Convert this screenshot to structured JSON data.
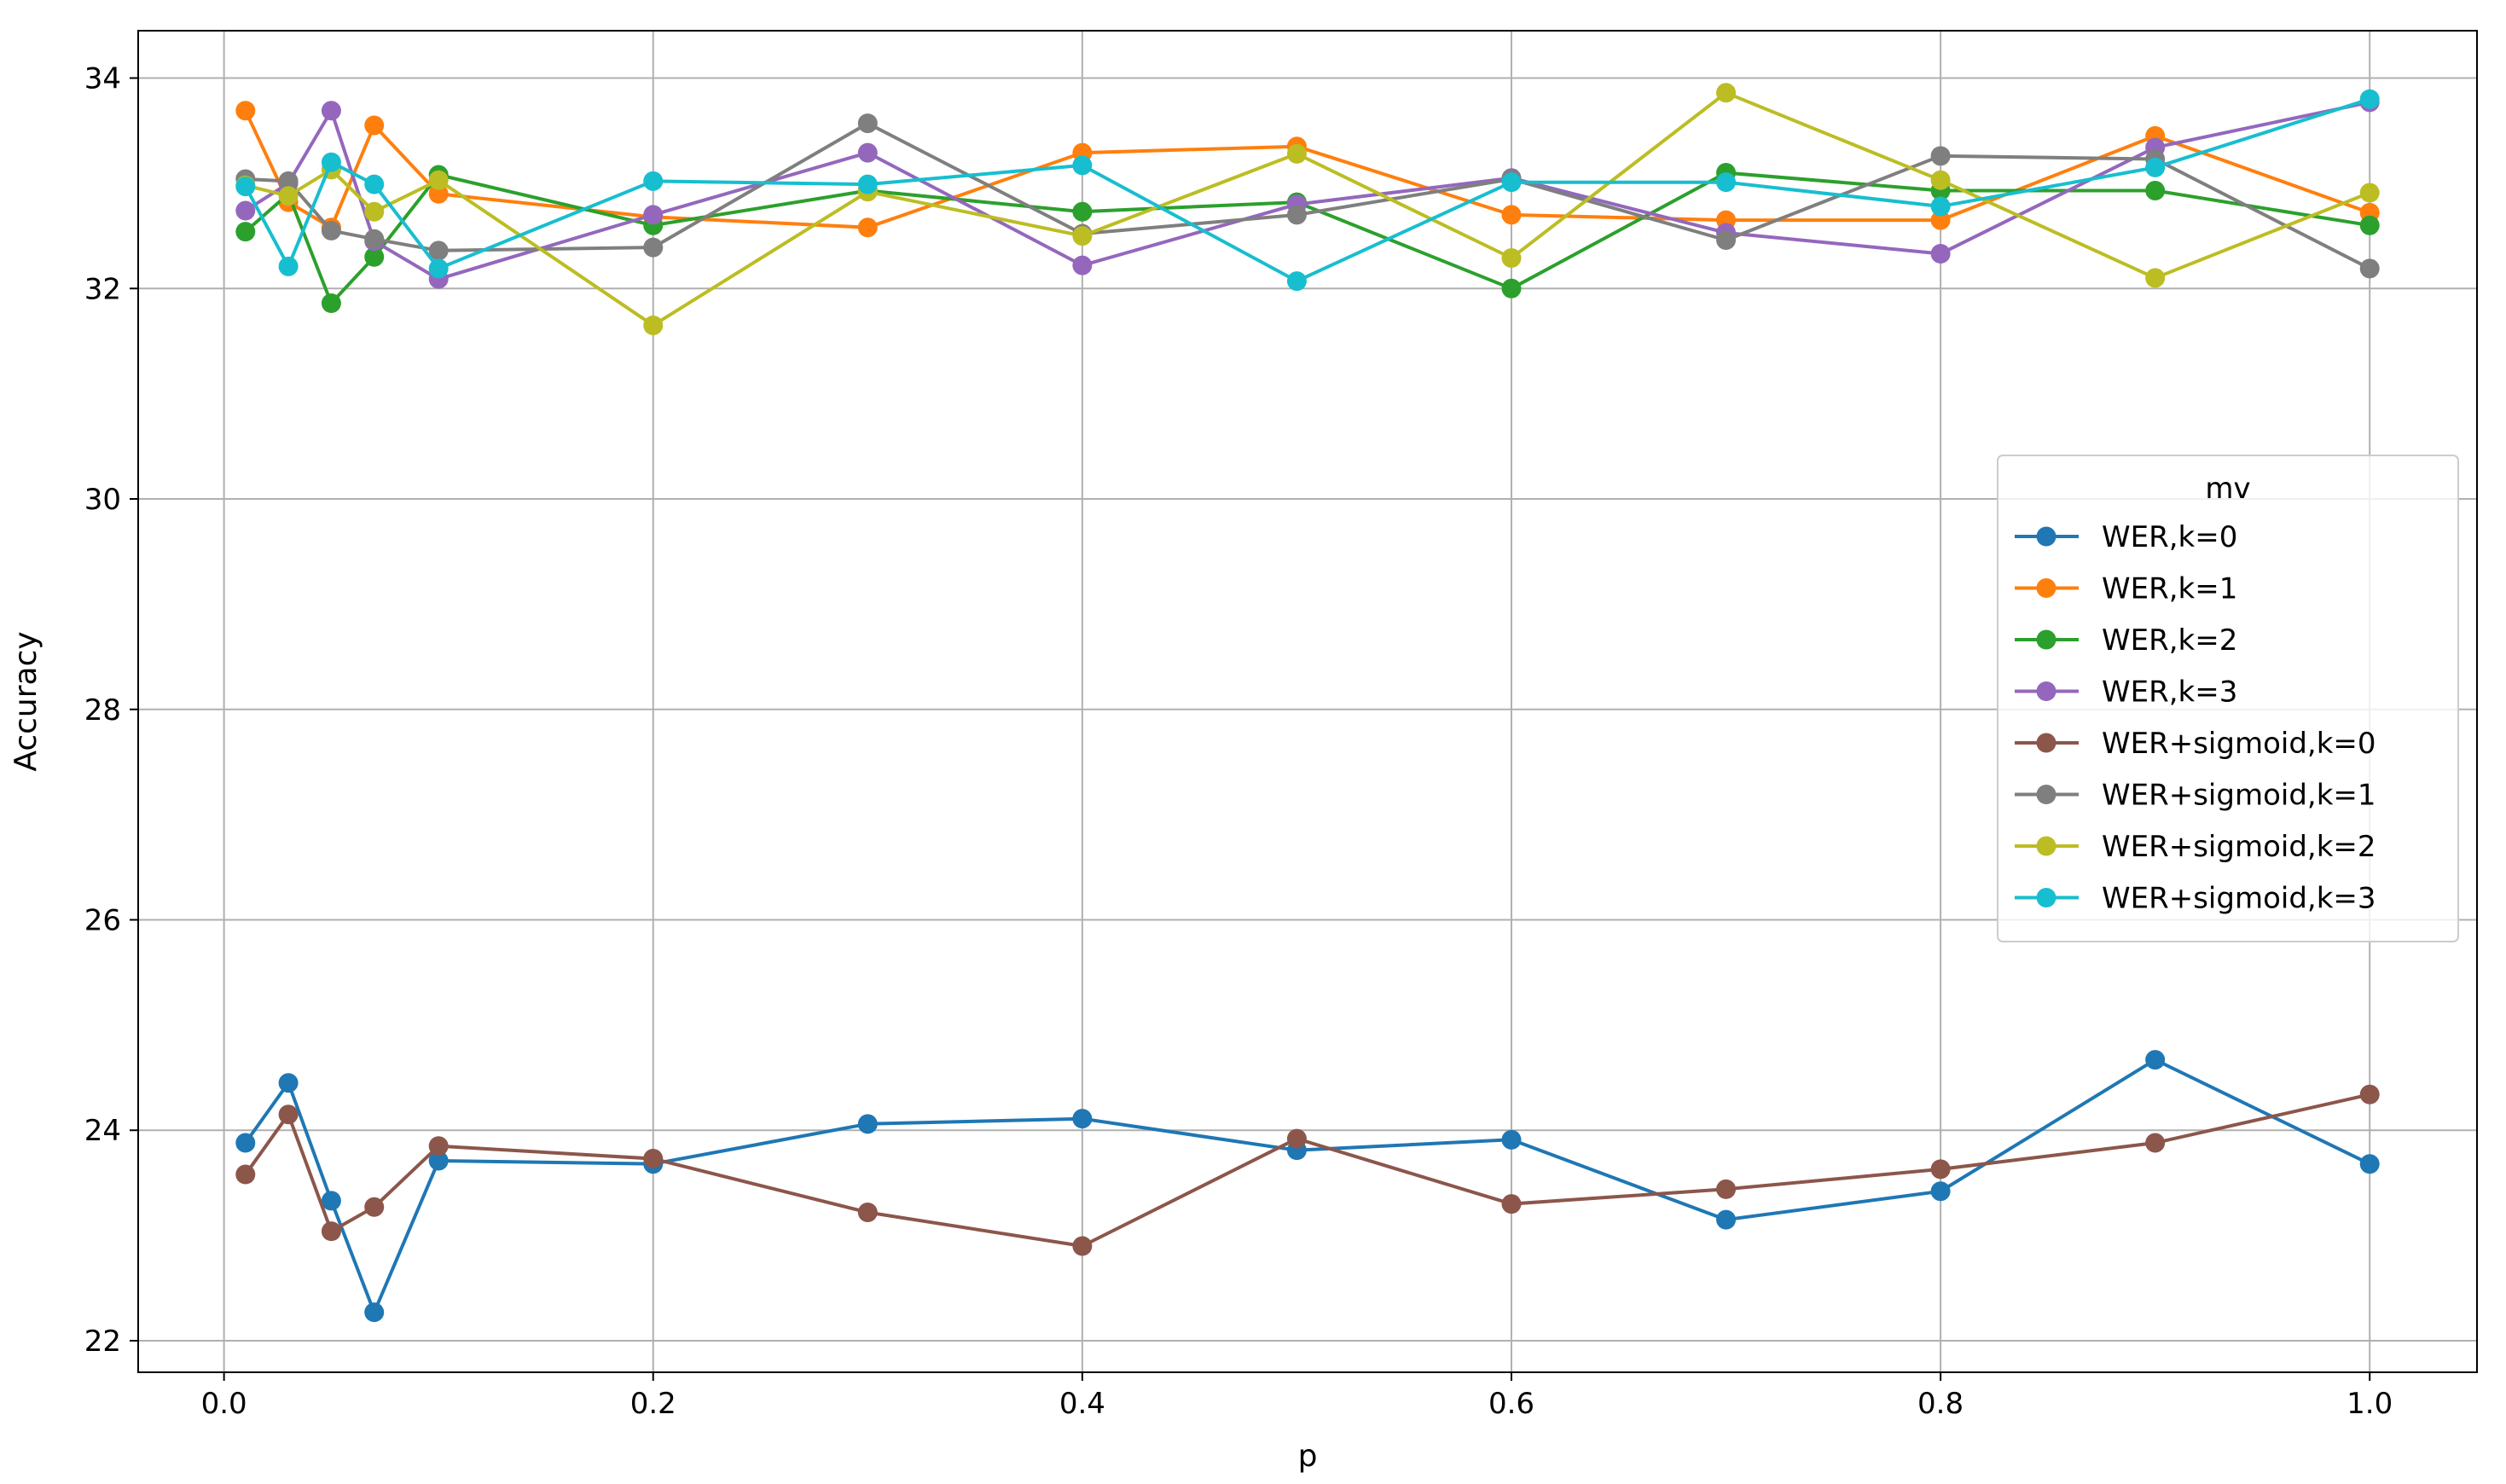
{
  "chart_data": {
    "type": "line",
    "title": "",
    "xlabel": "p",
    "ylabel": "Accuracy",
    "xlim": [
      -0.04,
      1.05
    ],
    "ylim": [
      21.7,
      34.45
    ],
    "xticks": [
      "0.0",
      "0.2",
      "0.4",
      "0.6",
      "0.8",
      "1.0"
    ],
    "xtick_values": [
      0.0,
      0.2,
      0.4,
      0.6,
      0.8,
      1.0
    ],
    "yticks": [
      "22",
      "24",
      "26",
      "28",
      "30",
      "32",
      "34"
    ],
    "ytick_values": [
      22,
      24,
      26,
      28,
      30,
      32,
      34
    ],
    "grid": true,
    "legend": {
      "title": "mv",
      "placement": "center-right"
    },
    "x": [
      0.01,
      0.03,
      0.05,
      0.07,
      0.1,
      0.2,
      0.3,
      0.4,
      0.5,
      0.6,
      0.7,
      0.8,
      0.9,
      1.0
    ],
    "series": [
      {
        "name": "WER,k=0",
        "color": "#1f77b4",
        "values": [
          23.88,
          24.45,
          23.33,
          22.27,
          23.71,
          23.68,
          24.06,
          24.11,
          23.81,
          23.91,
          23.15,
          23.42,
          24.67,
          23.68
        ]
      },
      {
        "name": "WER,k=1",
        "color": "#ff7f0e",
        "values": [
          33.69,
          32.82,
          32.58,
          33.55,
          32.9,
          32.68,
          32.58,
          33.29,
          33.35,
          32.7,
          32.65,
          32.65,
          33.45,
          32.72
        ]
      },
      {
        "name": "WER,k=2",
        "color": "#2ca02c",
        "values": [
          32.54,
          32.9,
          31.86,
          32.3,
          33.08,
          32.6,
          32.93,
          32.73,
          32.82,
          32.0,
          33.1,
          32.93,
          32.93,
          32.6
        ]
      },
      {
        "name": "WER,k=3",
        "color": "#9467bd",
        "values": [
          32.74,
          33.0,
          33.69,
          32.45,
          32.09,
          32.7,
          33.29,
          32.22,
          32.8,
          33.05,
          32.53,
          32.33,
          33.34,
          33.77
        ]
      },
      {
        "name": "WER+sigmoid,k=0",
        "color": "#8c564b",
        "values": [
          23.58,
          24.15,
          23.04,
          23.27,
          23.85,
          23.73,
          23.22,
          22.9,
          23.92,
          23.3,
          23.44,
          23.63,
          23.88,
          24.34
        ]
      },
      {
        "name": "WER+sigmoid,k=1",
        "color": "#7f7f7f",
        "values": [
          33.04,
          33.02,
          32.55,
          32.47,
          32.36,
          32.39,
          33.57,
          32.52,
          32.7,
          33.04,
          32.46,
          33.26,
          33.23,
          32.19
        ]
      },
      {
        "name": "WER+sigmoid,k=2",
        "color": "#bcbd22",
        "values": [
          32.98,
          32.88,
          33.13,
          32.73,
          33.03,
          31.65,
          32.92,
          32.5,
          33.28,
          32.29,
          33.86,
          33.03,
          32.1,
          32.91
        ]
      },
      {
        "name": "WER+sigmoid,k=3",
        "color": "#17becf",
        "values": [
          32.97,
          32.21,
          33.2,
          32.99,
          32.19,
          33.02,
          32.99,
          33.17,
          32.07,
          33.01,
          33.01,
          32.78,
          33.15,
          33.8
        ]
      }
    ]
  }
}
